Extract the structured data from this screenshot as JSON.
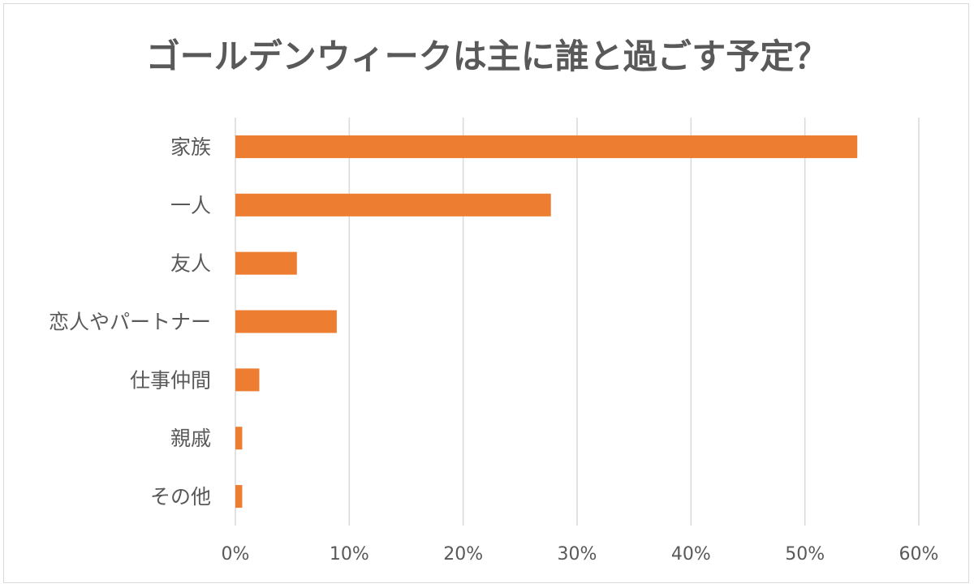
{
  "chart_data": {
    "type": "bar",
    "orientation": "horizontal",
    "title": "ゴールデンウィークは主に誰と過ごす予定？",
    "categories": [
      "家族",
      "一人",
      "友人",
      "恋人やパートナー",
      "仕事仲間",
      "親戚",
      "その他"
    ],
    "values": [
      54.6,
      27.7,
      5.4,
      8.9,
      2.1,
      0.6,
      0.6
    ],
    "value_unit": "%",
    "xlim": [
      0,
      60
    ],
    "xticks": [
      0,
      10,
      20,
      30,
      40,
      50,
      60
    ],
    "xtick_labels": [
      "0%",
      "10%",
      "20%",
      "30%",
      "40%",
      "50%",
      "60%"
    ],
    "xlabel": "",
    "ylabel": "",
    "grid": "vertical",
    "legend": "none",
    "bar_color": "#ED7D31"
  }
}
